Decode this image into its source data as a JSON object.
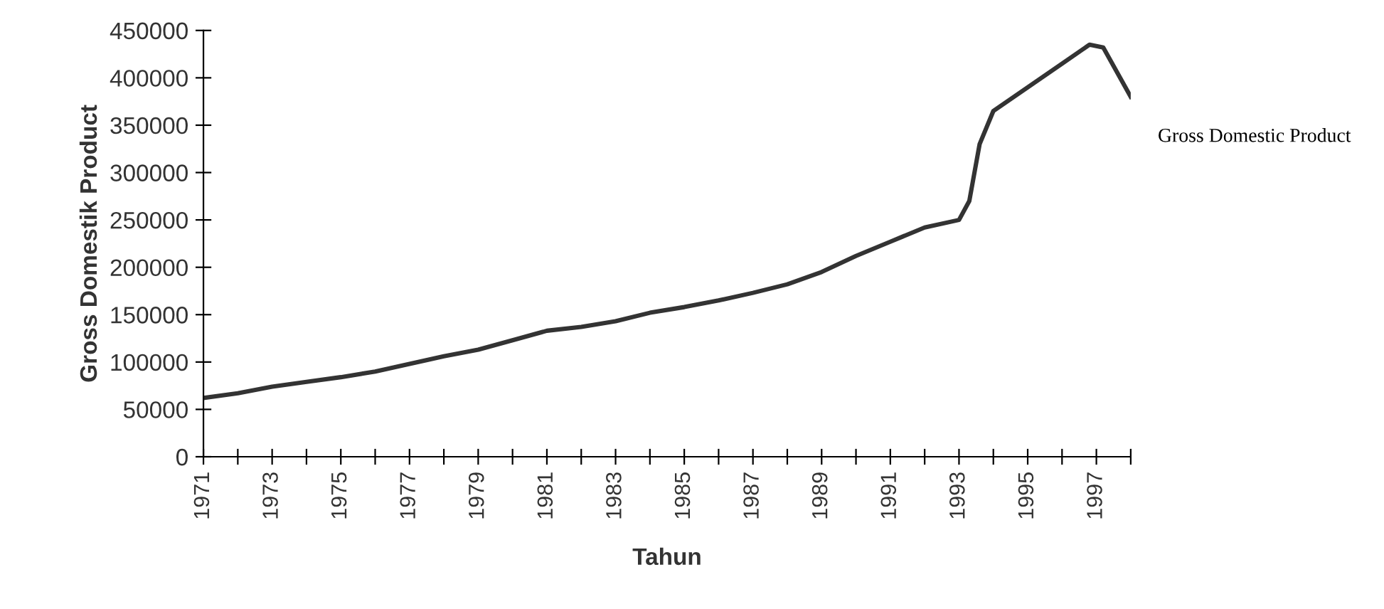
{
  "chart_data": {
    "type": "line",
    "xlabel": "Tahun",
    "ylabel": "Gross Domestik Product",
    "xlim": [
      1971,
      1998
    ],
    "ylim": [
      0,
      450000
    ],
    "xticks": [
      1971,
      {
        "value": 1972,
        "label": null
      },
      1973,
      {
        "value": 1974,
        "label": null
      },
      1975,
      {
        "value": 1976,
        "label": null
      },
      1977,
      {
        "value": 1978,
        "label": null
      },
      1979,
      {
        "value": 1980,
        "label": null
      },
      1981,
      {
        "value": 1982,
        "label": null
      },
      1983,
      {
        "value": 1984,
        "label": null
      },
      1985,
      {
        "value": 1986,
        "label": null
      },
      1987,
      {
        "value": 1988,
        "label": null
      },
      1989,
      {
        "value": 1990,
        "label": null
      },
      1991,
      {
        "value": 1992,
        "label": null
      },
      1993,
      {
        "value": 1994,
        "label": null
      },
      1995,
      {
        "value": 1996,
        "label": null
      },
      1997,
      {
        "value": 1998,
        "label": null
      }
    ],
    "yticks": [
      0,
      50000,
      100000,
      150000,
      200000,
      250000,
      300000,
      350000,
      400000,
      450000
    ],
    "grid": false,
    "legend": "right",
    "marker": "none",
    "line_style": "solid",
    "series": [
      {
        "name": "Gross Domestic Product",
        "color": "#333333",
        "x": [
          1971,
          1972,
          1973,
          1974,
          1975,
          1976,
          1977,
          1978,
          1979,
          1980,
          1981,
          1982,
          1983,
          1984,
          1985,
          1986,
          1987,
          1988,
          1989,
          1990,
          1991,
          1992,
          1993,
          1993.3,
          1993.6,
          1994,
          1995,
          1996,
          1996.8,
          1997.2,
          1998
        ],
        "values": [
          62000,
          67000,
          74000,
          79000,
          84000,
          90000,
          98000,
          106000,
          113000,
          123000,
          133000,
          137000,
          143000,
          152000,
          158000,
          165000,
          173000,
          182000,
          195000,
          212000,
          227000,
          242000,
          250000,
          270000,
          330000,
          365000,
          390000,
          415000,
          435000,
          432000,
          380000
        ]
      }
    ]
  }
}
